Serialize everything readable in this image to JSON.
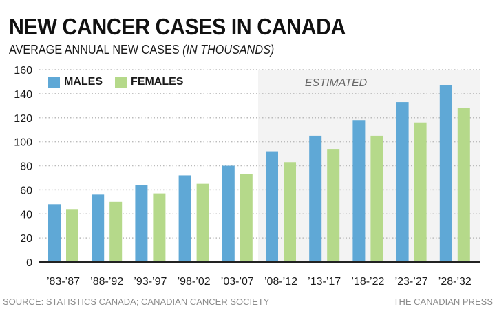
{
  "header": {
    "title": "NEW CANCER CASES IN CANADA",
    "subtitle_main": "AVERAGE ANNUAL NEW CASES",
    "subtitle_italic": "(IN THOUSANDS)"
  },
  "footer": {
    "source": "SOURCE: STATISTICS CANADA; CANADIAN CANCER SOCIETY",
    "credit": "THE CANADIAN PRESS"
  },
  "colors": {
    "males": "#5fa8d6",
    "females": "#b5d98a",
    "estimated_bg": "#f3f3f3",
    "axis": "#222222",
    "grid": "#bbbbbb"
  },
  "chart_data": {
    "type": "bar",
    "title": "NEW CANCER CASES IN CANADA",
    "subtitle": "AVERAGE ANNUAL NEW CASES (IN THOUSANDS)",
    "xlabel": "",
    "ylabel": "",
    "ylim": [
      0,
      160
    ],
    "yticks": [
      0,
      20,
      40,
      60,
      80,
      100,
      120,
      140,
      160
    ],
    "grid": true,
    "legend_position": "top-left",
    "categories": [
      "’83-’87",
      "’88-’92",
      "’93-’97",
      "’98-’02",
      "’03-’07",
      "’08-’12",
      "’13-’17",
      "’18-’22",
      "’23-’27",
      "’28-’32"
    ],
    "series": [
      {
        "name": "MALES",
        "values": [
          48,
          56,
          64,
          72,
          80,
          92,
          105,
          118,
          133,
          147
        ]
      },
      {
        "name": "FEMALES",
        "values": [
          44,
          50,
          57,
          65,
          73,
          83,
          94,
          105,
          116,
          128
        ]
      }
    ],
    "annotations": [
      {
        "text": "ESTIMATED",
        "applies_to_categories": [
          "’08-’12",
          "’13-’17",
          "’18-’22",
          "’23-’27",
          "’28-’32"
        ]
      }
    ]
  }
}
